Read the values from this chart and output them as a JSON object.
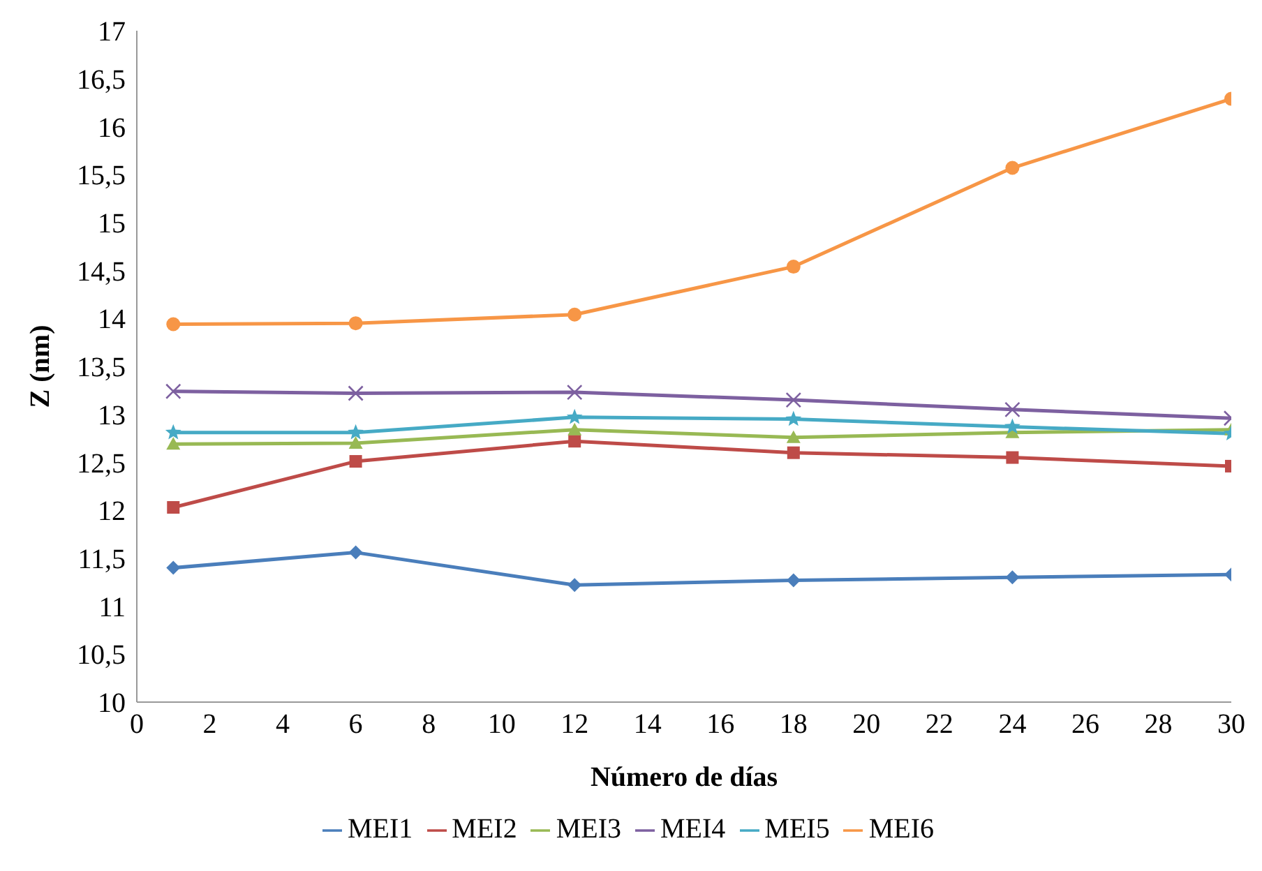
{
  "chart_data": {
    "type": "line",
    "xlabel": "Número de días",
    "ylabel": "Z (nm)",
    "x": [
      1,
      6,
      12,
      18,
      24,
      30
    ],
    "series": [
      {
        "name": "MEI1",
        "color": "#4a7ebb",
        "marker": "diamond",
        "values": [
          11.4,
          11.56,
          11.22,
          11.27,
          11.3,
          11.33
        ]
      },
      {
        "name": "MEI2",
        "color": "#be4b48",
        "marker": "square",
        "values": [
          12.03,
          12.51,
          12.72,
          12.6,
          12.55,
          12.46
        ]
      },
      {
        "name": "MEI3",
        "color": "#98b954",
        "marker": "triangle",
        "values": [
          12.69,
          12.7,
          12.84,
          12.76,
          12.81,
          12.84
        ]
      },
      {
        "name": "MEI4",
        "color": "#7d60a0",
        "marker": "cross",
        "values": [
          13.24,
          13.22,
          13.23,
          13.15,
          13.05,
          12.96
        ]
      },
      {
        "name": "MEI5",
        "color": "#46aac5",
        "marker": "star",
        "values": [
          12.81,
          12.81,
          12.97,
          12.95,
          12.87,
          12.8
        ]
      },
      {
        "name": "MEI6",
        "color": "#f79646",
        "marker": "circle",
        "values": [
          13.94,
          13.95,
          14.04,
          14.54,
          15.57,
          16.29
        ]
      }
    ],
    "xlim": [
      0,
      30
    ],
    "xticks": [
      0,
      2,
      4,
      6,
      8,
      10,
      12,
      14,
      16,
      18,
      20,
      22,
      24,
      26,
      28,
      30
    ],
    "ylim": [
      10,
      17
    ],
    "yticks": [
      10,
      {
        "value": 10.5,
        "label": "10,5"
      },
      11,
      {
        "value": 11.5,
        "label": "11,5"
      },
      12,
      {
        "value": 12.5,
        "label": "12,5"
      },
      13,
      {
        "value": 13.5,
        "label": "13,5"
      },
      14,
      {
        "value": 14.5,
        "label": "14,5"
      },
      15,
      {
        "value": 15.5,
        "label": "15,5"
      },
      16,
      {
        "value": 16.5,
        "label": "16,5"
      },
      17
    ],
    "grid": false,
    "legend": "bottom"
  }
}
